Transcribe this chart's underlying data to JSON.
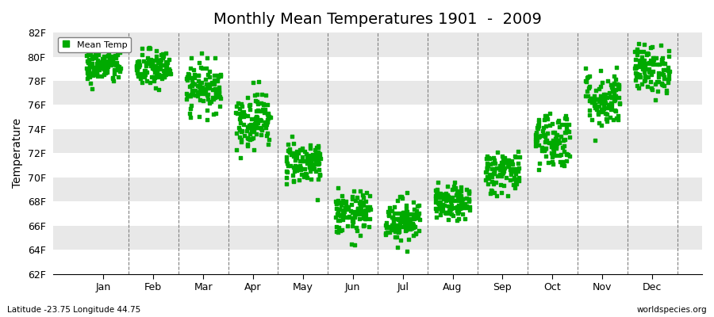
{
  "title": "Monthly Mean Temperatures 1901  -  2009",
  "ylabel": "Temperature",
  "xlabel_months": [
    "Jan",
    "Feb",
    "Mar",
    "Apr",
    "May",
    "Jun",
    "Jul",
    "Aug",
    "Sep",
    "Oct",
    "Nov",
    "Dec"
  ],
  "ytick_labels": [
    "62F",
    "64F",
    "66F",
    "68F",
    "70F",
    "72F",
    "74F",
    "76F",
    "78F",
    "80F",
    "82F"
  ],
  "ytick_values": [
    62,
    64,
    66,
    68,
    70,
    72,
    74,
    76,
    78,
    80,
    82
  ],
  "ylim": [
    62,
    82
  ],
  "xlim": [
    0,
    13
  ],
  "footer_left": "Latitude -23.75 Longitude 44.75",
  "footer_right": "worldspecies.org",
  "legend_label": "Mean Temp",
  "marker_color": "#00aa00",
  "bg_color": "#e8e8e8",
  "band_color": "#ffffff",
  "n_years": 109,
  "monthly_means": [
    79.2,
    79.0,
    77.5,
    74.8,
    71.3,
    67.0,
    66.5,
    67.8,
    70.5,
    73.2,
    76.5,
    79.0
  ],
  "monthly_stds": [
    0.7,
    0.8,
    1.0,
    1.2,
    0.9,
    0.9,
    0.9,
    0.7,
    0.9,
    1.2,
    1.2,
    1.0
  ]
}
